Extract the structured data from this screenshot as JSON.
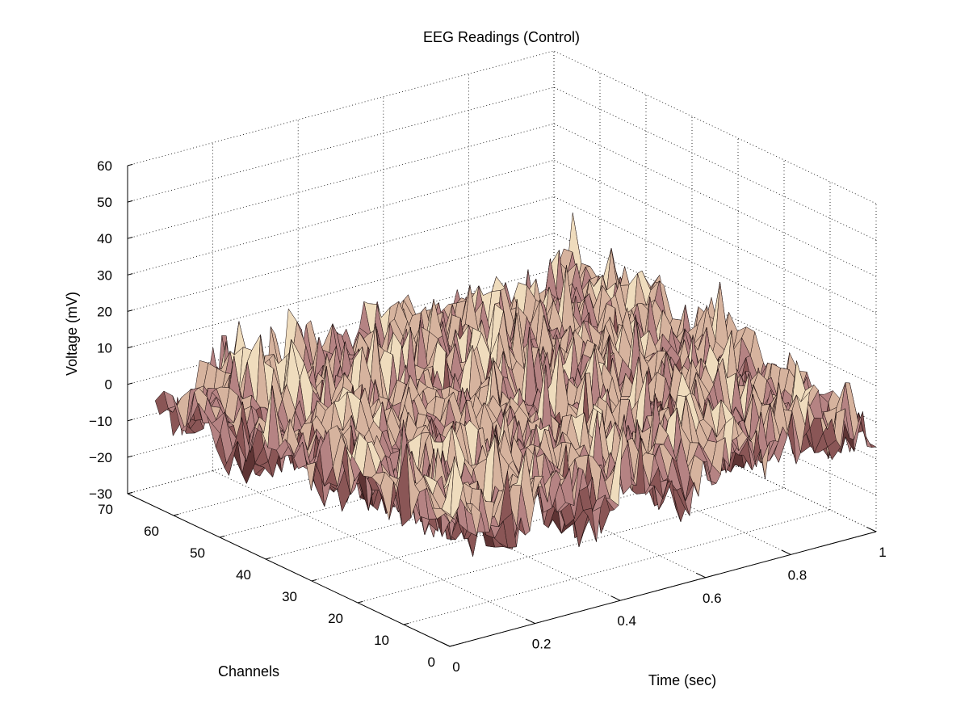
{
  "chart_data": {
    "type": "surface",
    "title": "EEG Readings (Control)",
    "xlabel": "Time (sec)",
    "ylabel": "Channels",
    "zlabel": "Voltage (mV)",
    "xlim": [
      0,
      1
    ],
    "ylim": [
      0,
      70
    ],
    "zlim": [
      -30,
      60
    ],
    "x_ticks": [
      0,
      0.2,
      0.4,
      0.6,
      0.8,
      1
    ],
    "x_tick_labels": [
      "0",
      "0.2",
      "0.4",
      "0.6",
      "0.8",
      "1"
    ],
    "y_ticks": [
      0,
      10,
      20,
      30,
      40,
      50,
      60,
      70
    ],
    "y_tick_labels": [
      "0",
      "10",
      "20",
      "30",
      "40",
      "50",
      "60",
      "70"
    ],
    "z_ticks": [
      -30,
      -20,
      -10,
      0,
      10,
      20,
      30,
      40,
      50,
      60
    ],
    "z_tick_labels": [
      "−30",
      "−20",
      "−10",
      "0",
      "10",
      "20",
      "30",
      "40",
      "50",
      "60"
    ],
    "grid": true,
    "surface_extent": {
      "x": [
        0,
        1
      ],
      "y": [
        0,
        64
      ]
    },
    "surface_mean_voltage": 0,
    "surface_voltage_range": [
      -20,
      20
    ],
    "colormap": [
      "#5e3434",
      "#8a5656",
      "#b58383",
      "#d6b39e",
      "#efdcbd"
    ]
  }
}
